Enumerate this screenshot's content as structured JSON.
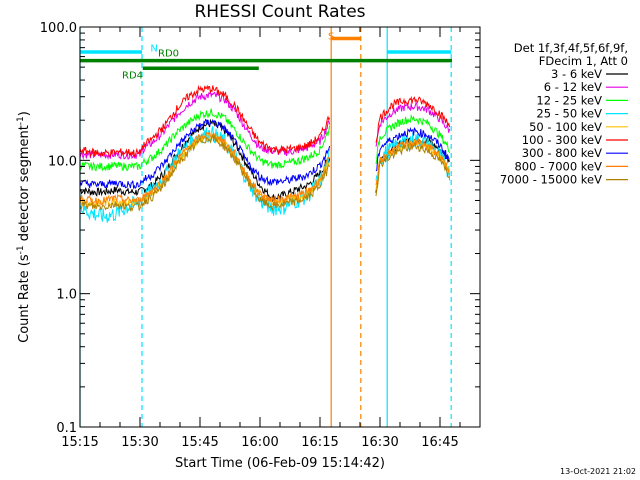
{
  "chart_data": {
    "type": "line",
    "title": "RHESSI Count Rates",
    "xlabel": "Start Time (06-Feb-09 15:14:42)",
    "ylabel_main": "Count Rate (s",
    "ylabel_sup1": "-1",
    "ylabel_mid": " detector segment",
    "ylabel_sup2": "-1",
    "ylabel_end": ")",
    "ylim": [
      0.1,
      100.0
    ],
    "y_scale": "log",
    "x_range_minutes": [
      0,
      100
    ],
    "y_ticks": [
      {
        "value": 100.0,
        "label": "100.0"
      },
      {
        "value": 10.0,
        "label": "10.0"
      },
      {
        "value": 1.0,
        "label": "1.0"
      },
      {
        "value": 0.1,
        "label": "0.1"
      }
    ],
    "x_ticks": [
      {
        "minute": 0,
        "label": "15:15"
      },
      {
        "minute": 15,
        "label": "15:30"
      },
      {
        "minute": 30,
        "label": "15:45"
      },
      {
        "minute": 45,
        "label": "16:00"
      },
      {
        "minute": 60,
        "label": "16:15"
      },
      {
        "minute": 75,
        "label": "16:30"
      },
      {
        "minute": 90,
        "label": "16:45"
      }
    ],
    "legend_header": [
      "Det 1f,3f,4f,5f,6f,9f,",
      "FDecim 1, Att 0"
    ],
    "legend_placement": "right",
    "footer_date": "13-Oct-2021 21:02",
    "segment_labels": {
      "N": "N",
      "RD0": "RD0",
      "RD4": "RD4",
      "S": "S"
    },
    "x_points": [
      0,
      3,
      6,
      9,
      12,
      15,
      15.5,
      18,
      21,
      24,
      27,
      30,
      33,
      36,
      39,
      42,
      45,
      48,
      51,
      54,
      57,
      60,
      61.5,
      62.5,
      73.5,
      74,
      75,
      78,
      81,
      84,
      87,
      90,
      92.5,
      94
    ],
    "series": [
      {
        "name": "3 - 6 keV",
        "color": "#000000",
        "values": [
          6.0,
          5.8,
          5.8,
          6.0,
          5.8,
          5.8,
          6.0,
          6.5,
          8.0,
          11.0,
          14.5,
          18.0,
          19.0,
          17.0,
          13.0,
          9.0,
          6.5,
          5.2,
          5.5,
          6.0,
          6.5,
          8.0,
          9.5,
          10.5,
          null,
          6.0,
          10.0,
          12.0,
          14.0,
          14.5,
          14.0,
          12.0,
          10.0,
          null
        ]
      },
      {
        "name": "6 - 12 keV",
        "color": "#e600e6",
        "values": [
          11.2,
          11.0,
          11.0,
          11.1,
          11.0,
          11.0,
          12.0,
          13.5,
          16.5,
          21.5,
          26.5,
          30.0,
          31.0,
          29.0,
          23.0,
          16.5,
          12.5,
          11.8,
          11.5,
          11.8,
          12.5,
          14.0,
          17.0,
          20.0,
          null,
          13.0,
          19.0,
          23.0,
          25.0,
          25.5,
          24.0,
          20.5,
          16.5,
          null
        ]
      },
      {
        "name": "12 - 25 keV",
        "color": "#00ff00",
        "values": [
          9.2,
          9.0,
          9.0,
          9.1,
          9.0,
          9.0,
          9.5,
          10.5,
          12.5,
          16.0,
          19.0,
          22.0,
          23.0,
          21.0,
          16.5,
          12.5,
          10.0,
          9.2,
          9.4,
          9.8,
          10.5,
          12.0,
          15.0,
          18.0,
          null,
          10.0,
          15.0,
          18.0,
          20.0,
          20.5,
          19.0,
          15.5,
          12.0,
          null
        ]
      },
      {
        "name": "25 - 50 keV",
        "color": "#00e5ff",
        "values": [
          4.5,
          4.0,
          3.8,
          4.0,
          4.5,
          5.0,
          5.2,
          6.0,
          7.5,
          10.5,
          13.0,
          15.5,
          16.0,
          14.0,
          10.5,
          7.0,
          5.0,
          4.4,
          4.5,
          5.0,
          5.5,
          7.0,
          9.0,
          11.0,
          null,
          6.5,
          10.5,
          12.5,
          14.0,
          14.5,
          13.5,
          11.0,
          8.0,
          null
        ]
      },
      {
        "name": "50 - 100 keV",
        "color": "#ffc000",
        "values": [
          5.0,
          4.8,
          4.8,
          5.0,
          4.8,
          4.8,
          5.0,
          5.6,
          7.0,
          9.5,
          12.0,
          14.5,
          15.5,
          13.5,
          10.5,
          7.2,
          5.4,
          4.8,
          5.0,
          5.2,
          5.6,
          7.0,
          8.8,
          10.5,
          null,
          6.0,
          10.0,
          11.5,
          13.0,
          13.5,
          12.5,
          10.5,
          8.0,
          null
        ]
      },
      {
        "name": "100 - 300 keV",
        "color": "#ff0000",
        "values": [
          12.0,
          11.5,
          11.3,
          11.5,
          11.5,
          11.3,
          12.5,
          14.5,
          18.0,
          24.0,
          30.0,
          34.0,
          34.5,
          31.0,
          25.0,
          18.0,
          13.5,
          12.2,
          12.0,
          12.3,
          13.0,
          15.0,
          18.5,
          22.0,
          null,
          14.0,
          21.0,
          26.0,
          28.0,
          28.5,
          26.5,
          22.5,
          18.0,
          null
        ]
      },
      {
        "name": "300 - 800 keV",
        "color": "#0000ff",
        "values": [
          6.8,
          6.6,
          6.6,
          6.8,
          6.6,
          6.6,
          7.0,
          7.8,
          9.5,
          12.5,
          15.5,
          18.5,
          19.5,
          17.5,
          13.5,
          9.5,
          7.5,
          6.9,
          7.0,
          7.3,
          7.8,
          9.2,
          11.0,
          13.0,
          null,
          8.0,
          12.5,
          14.5,
          16.0,
          16.5,
          15.5,
          13.0,
          10.0,
          null
        ]
      },
      {
        "name": "800 - 7000 keV",
        "color": "#ff8000",
        "values": [
          5.2,
          5.0,
          5.0,
          5.2,
          5.0,
          5.0,
          5.3,
          5.9,
          7.2,
          9.8,
          12.5,
          15.0,
          15.8,
          13.8,
          10.8,
          7.5,
          5.6,
          5.0,
          5.2,
          5.4,
          5.8,
          7.2,
          9.0,
          10.8,
          null,
          6.2,
          10.2,
          11.8,
          13.2,
          13.8,
          12.8,
          10.8,
          8.2,
          null
        ]
      },
      {
        "name": "7000 - 15000 keV",
        "color": "#b08000",
        "values": [
          4.7,
          4.5,
          4.5,
          4.7,
          4.5,
          4.5,
          4.8,
          5.3,
          6.5,
          9.0,
          11.5,
          14.0,
          14.8,
          12.8,
          10.0,
          7.0,
          5.0,
          4.5,
          4.7,
          4.9,
          5.3,
          6.5,
          8.0,
          9.8,
          null,
          5.6,
          9.4,
          10.8,
          12.2,
          12.8,
          11.8,
          10.0,
          7.5,
          null
        ]
      }
    ],
    "vertical_markers": [
      {
        "minute": 0,
        "color": "#00e5ff",
        "style": "solid"
      },
      {
        "minute": 15.5,
        "color": "#00e5ff",
        "style": "dashed"
      },
      {
        "minute": 62.8,
        "color": "#ff8000",
        "style": "solid"
      },
      {
        "minute": 70.2,
        "color": "#ff8000",
        "style": "dashed"
      },
      {
        "minute": 76.8,
        "color": "#00e5ff",
        "style": "solid"
      },
      {
        "minute": 92.8,
        "color": "#00e5ff",
        "style": "dashed"
      }
    ],
    "bars": [
      {
        "name": "N",
        "color": "#00e5ff",
        "value": 65.0,
        "segments": [
          [
            0,
            15.5
          ],
          [
            76.8,
            92.8
          ]
        ]
      },
      {
        "name": "RD0",
        "color": "#008000",
        "value": 56.0,
        "segments": [
          [
            0,
            93.0
          ]
        ]
      },
      {
        "name": "RD4",
        "color": "#008000",
        "value": 49.0,
        "segments": [
          [
            15.7,
            44.7
          ]
        ]
      },
      {
        "name": "S",
        "color": "#ff8000",
        "value": 82.0,
        "segments": [
          [
            62.8,
            70.2
          ]
        ]
      }
    ]
  }
}
